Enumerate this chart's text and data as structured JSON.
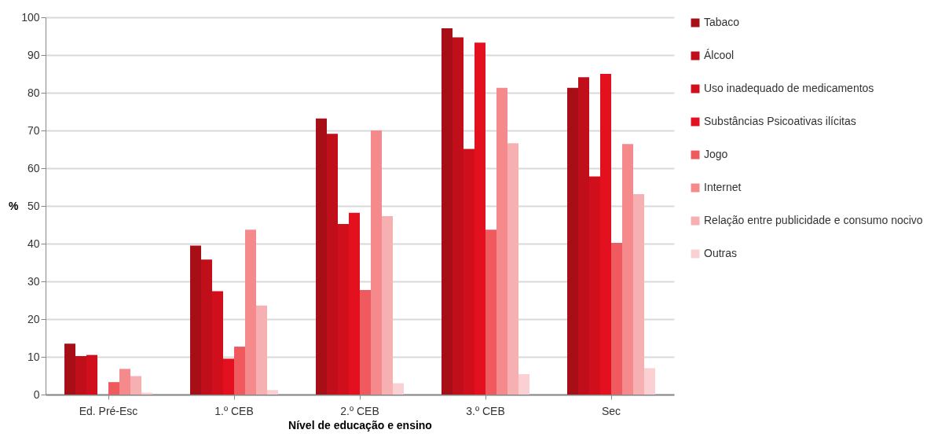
{
  "chart_data": {
    "type": "bar",
    "xlabel": "Nível de educação e ensino",
    "ylabel": "%",
    "categories": [
      "Ed. Pré-Esc",
      "1.º CEB",
      "2.º CEB",
      "3.º CEB",
      "Sec"
    ],
    "series": [
      {
        "name": "Tabaco",
        "color": "#a50f15",
        "values": [
          13.5,
          39.5,
          73.2,
          97.1,
          81.3
        ]
      },
      {
        "name": "Álcool",
        "color": "#c00e1a",
        "values": [
          10.2,
          35.8,
          69.1,
          94.7,
          84.1
        ]
      },
      {
        "name": "Uso inadequado de medicamentos",
        "color": "#d10f1c",
        "values": [
          10.5,
          27.4,
          45.2,
          65.1,
          57.8
        ]
      },
      {
        "name": "Substâncias Psicoativas ilícitas",
        "color": "#e31020",
        "values": [
          0,
          9.5,
          48.2,
          93.3,
          85.0
        ]
      },
      {
        "name": "Jogo",
        "color": "#ef5a5e",
        "values": [
          3.3,
          12.7,
          27.7,
          43.7,
          40.2
        ]
      },
      {
        "name": "Internet",
        "color": "#f48a8c",
        "values": [
          6.8,
          43.7,
          70.0,
          81.3,
          66.4
        ]
      },
      {
        "name": "Relação entre publicidade e consumo nocivo",
        "color": "#f7b0b2",
        "values": [
          4.9,
          23.6,
          47.3,
          66.6,
          53.1
        ]
      },
      {
        "name": "Outras",
        "color": "#fbd0d2",
        "values": [
          0.5,
          1.2,
          3.0,
          5.4,
          7.0
        ]
      }
    ],
    "ylim": [
      0,
      100
    ],
    "yticks": [
      0,
      10,
      20,
      30,
      40,
      50,
      60,
      70,
      80,
      90,
      100
    ],
    "grid": "y",
    "legend": "right"
  }
}
